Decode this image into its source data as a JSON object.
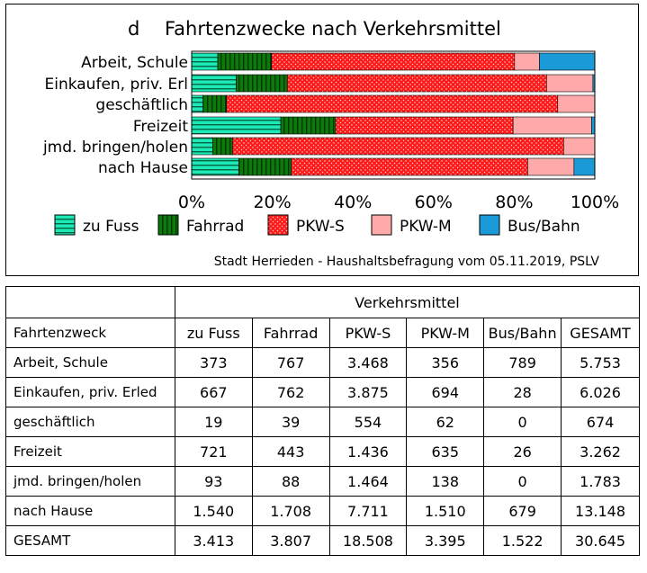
{
  "chart_data": {
    "type": "bar",
    "orientation": "horizontal",
    "stacked": "percent",
    "title_letter": "d",
    "title": "Fahrtenzwecke nach Verkehrsmittel",
    "categories": [
      "Arbeit, Schule",
      "Einkaufen, priv. Erl",
      "geschäftlich",
      "Freizeit",
      "jmd. bringen/holen",
      "nach Hause"
    ],
    "series": [
      {
        "name": "zu Fuss",
        "values": [
          373,
          667,
          19,
          721,
          93,
          1540
        ],
        "color": "#1de9b6",
        "pattern": "h-stripes"
      },
      {
        "name": "Fahrrad",
        "values": [
          767,
          762,
          39,
          443,
          88,
          1708
        ],
        "color": "#0b7a0b",
        "pattern": "v-stripes"
      },
      {
        "name": "PKW-S",
        "values": [
          3468,
          3875,
          554,
          1436,
          1464,
          7711
        ],
        "color": "#ff1a1a",
        "pattern": "dots"
      },
      {
        "name": "PKW-M",
        "values": [
          356,
          694,
          62,
          635,
          138,
          1510
        ],
        "color": "#ffaaaa",
        "pattern": "solid"
      },
      {
        "name": "Bus/Bahn",
        "values": [
          789,
          28,
          0,
          26,
          0,
          679
        ],
        "color": "#1a9ad6",
        "pattern": "solid"
      }
    ],
    "xticks": [
      "0%",
      "20%",
      "40%",
      "60%",
      "80%",
      "100%"
    ],
    "xlim": [
      0,
      100
    ],
    "legend_position": "bottom",
    "grid": false,
    "source": "Stadt Herrieden - Haushaltsbefragung vom 05.11.2019, PSLV"
  },
  "table": {
    "group_header": "Verkehrsmittel",
    "columns": [
      "Fahrtenzweck",
      "zu Fuss",
      "Fahrrad",
      "PKW-S",
      "PKW-M",
      "Bus/Bahn",
      "GESAMT"
    ],
    "rows": [
      [
        "Arbeit, Schule",
        "373",
        "767",
        "3.468",
        "356",
        "789",
        "5.753"
      ],
      [
        "Einkaufen, priv. Erled",
        "667",
        "762",
        "3.875",
        "694",
        "28",
        "6.026"
      ],
      [
        "geschäftlich",
        "19",
        "39",
        "554",
        "62",
        "0",
        "674"
      ],
      [
        "Freizeit",
        "721",
        "443",
        "1.436",
        "635",
        "26",
        "3.262"
      ],
      [
        "jmd. bringen/holen",
        "93",
        "88",
        "1.464",
        "138",
        "0",
        "1.783"
      ],
      [
        "nach Hause",
        "1.540",
        "1.708",
        "7.711",
        "1.510",
        "679",
        "13.148"
      ],
      [
        "GESAMT",
        "3.413",
        "3.807",
        "18.508",
        "3.395",
        "1.522",
        "30.645"
      ]
    ]
  }
}
